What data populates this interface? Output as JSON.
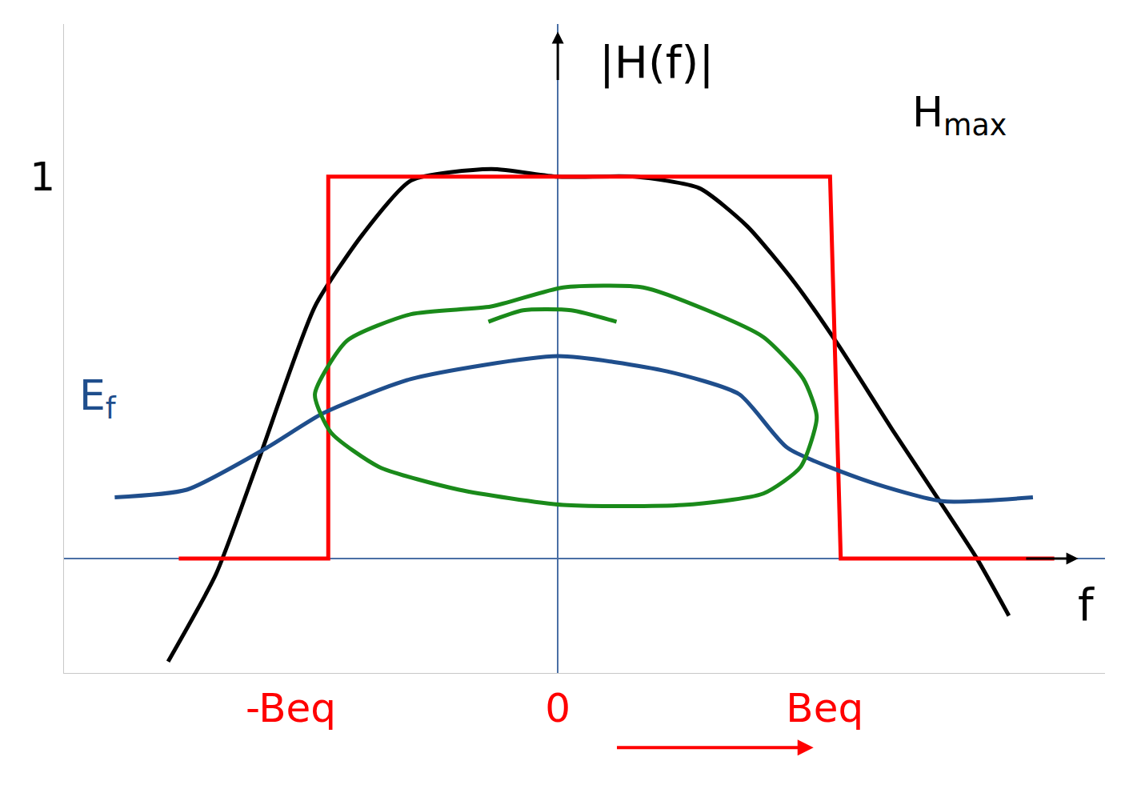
{
  "chart_data": {
    "type": "line",
    "x_label": "f",
    "xlim": [
      -1.85,
      2.05
    ],
    "ylim": [
      -0.3,
      1.4
    ],
    "xticks": [
      {
        "value": -1,
        "label": "-Beq"
      },
      0,
      {
        "value": 1,
        "label": "Beq"
      }
    ],
    "yticks": [
      1
    ],
    "grid": false,
    "annotations": [
      {
        "text": "|H(f)|"
      },
      {
        "text": "H",
        "sub": "max"
      },
      {
        "text": "E",
        "sub": "f",
        "color": "#1f4e8c"
      }
    ],
    "series": [
      {
        "color": "#000000",
        "x": [
          -1.46,
          -1.28,
          -1.12,
          -0.91,
          -0.73,
          -0.55,
          -0.25,
          0,
          0.29,
          0.53,
          0.71,
          0.89,
          1.05,
          1.26,
          1.44,
          1.57,
          1.69
        ],
        "values": [
          -0.27,
          -0.04,
          0.26,
          0.66,
          0.85,
          0.99,
          1.02,
          1.0,
          1.0,
          0.97,
          0.87,
          0.72,
          0.56,
          0.33,
          0.14,
          0.0,
          -0.15
        ]
      },
      {
        "color": "#ff0000",
        "x": [
          -1.42,
          -0.86,
          -0.86,
          1.02,
          1.06,
          1.86
        ],
        "values": [
          0,
          0,
          1,
          1,
          0,
          0
        ]
      },
      {
        "color": "#1f4e8c",
        "x": [
          -1.66,
          -1.39,
          -1.09,
          -0.88,
          -0.55,
          0,
          0.41,
          0.68,
          0.86,
          1.17,
          1.44,
          1.78
        ],
        "values": [
          0.16,
          0.18,
          0.29,
          0.38,
          0.47,
          0.53,
          0.49,
          0.43,
          0.29,
          0.2,
          0.15,
          0.16
        ]
      },
      {
        "color": "#1a8a1a",
        "x": [
          -0.91,
          -0.79,
          -0.55,
          -0.25,
          0.02,
          0.32,
          0.56,
          0.77,
          0.92,
          0.97,
          0.91,
          0.77,
          0.47,
          0.02,
          -0.37,
          -0.67,
          -0.85,
          -0.91
        ],
        "values": [
          0.43,
          0.57,
          0.64,
          0.66,
          0.71,
          0.71,
          0.65,
          0.58,
          0.47,
          0.37,
          0.24,
          0.17,
          0.14,
          0.14,
          0.18,
          0.24,
          0.33,
          0.43
        ]
      },
      {
        "color": "#1a8a1a",
        "x": [
          -0.26,
          -0.13,
          0.05,
          0.22
        ],
        "values": [
          0.62,
          0.65,
          0.65,
          0.62
        ]
      }
    ]
  }
}
